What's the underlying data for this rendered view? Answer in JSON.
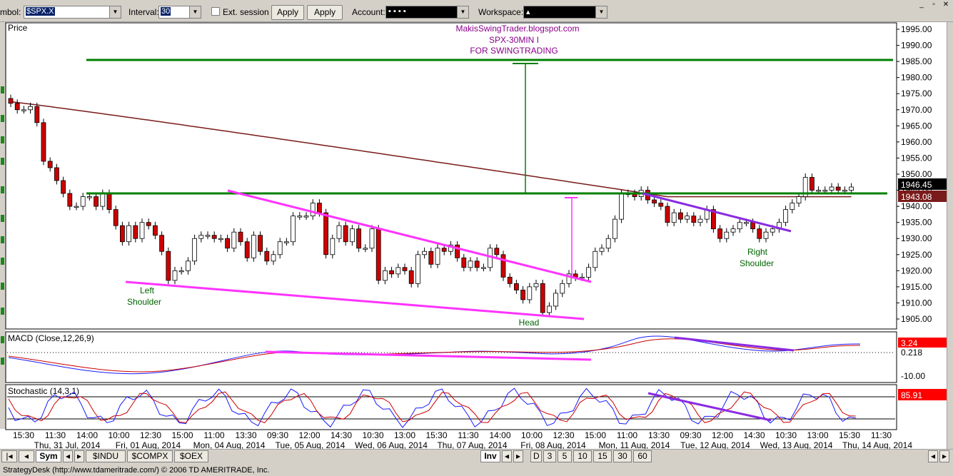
{
  "toolbar": {
    "symbol_label": "mbol:",
    "symbol_value": "$SPX.X",
    "interval_label": "Interval:",
    "interval_value": "30",
    "ext_session_label": "Ext. session",
    "apply_label": "Apply",
    "apply_all_label": "Apply All",
    "account_label": "Account:",
    "account_value": "▪  ▪  ▪  ▪",
    "workspace_label": "Workspace:",
    "workspace_value": "▴"
  },
  "annotations": {
    "site": "MakisSwingTrader.blogspot.com",
    "symbol_line": "SPX-30MIN  I",
    "purpose": "FOR SWINGTRADING",
    "left_shoulder": [
      "Left",
      "Shoulder"
    ],
    "head": "Head",
    "right_shoulder": [
      "Right",
      "Shoulder"
    ]
  },
  "chart_data": [
    {
      "type": "candlestick",
      "title": "Price",
      "y_ticks": [
        "1995.00",
        "1990.00",
        "1985.00",
        "1980.00",
        "1975.00",
        "1970.00",
        "1965.00",
        "1960.00",
        "1955.00",
        "1950.00",
        "1945.00",
        "1940.00",
        "1935.00",
        "1930.00",
        "1925.00",
        "1920.00",
        "1915.00",
        "1910.00",
        "1905.00"
      ],
      "ylim": [
        1901,
        1997
      ],
      "last_price": "1946.45",
      "ma_value": "1943.08",
      "closes": [
        1972,
        1970,
        1970,
        1971,
        1966,
        1954,
        1952,
        1948,
        1944,
        1940,
        1940,
        1943,
        1943,
        1940,
        1944,
        1939,
        1934,
        1929,
        1934,
        1930,
        1935,
        1934,
        1931,
        1926,
        1917,
        1920,
        1920,
        1923,
        1930,
        1931,
        1931,
        1930,
        1930,
        1927,
        1932,
        1929,
        1924,
        1931,
        1926,
        1923,
        1925,
        1929,
        1929,
        1937,
        1937,
        1937,
        1941,
        1938,
        1925,
        1930,
        1934,
        1929,
        1933,
        1927,
        1927,
        1933,
        1917,
        1920,
        1919,
        1921,
        1920,
        1916,
        1925,
        1926,
        1922,
        1927,
        1926,
        1928,
        1924,
        1921,
        1923,
        1921,
        1921,
        1927,
        1925,
        1918,
        1916,
        1914,
        1911,
        1915,
        1916,
        1907,
        1909,
        1913,
        1916,
        1919,
        1918,
        1918,
        1921,
        1926,
        1927,
        1930,
        1936,
        1944,
        1944,
        1943,
        1945,
        1942,
        1941,
        1940,
        1935,
        1938,
        1936,
        1937,
        1935,
        1936,
        1939,
        1933,
        1930,
        1932,
        1933,
        1935,
        1935,
        1933,
        1930,
        1932,
        1933,
        1935,
        1939,
        1941,
        1943,
        1949,
        1945,
        1945,
        1945,
        1946,
        1945,
        1945,
        1946
      ]
    },
    {
      "type": "line",
      "title": "MACD (Close,12,26,9)",
      "y_ticks": [
        "-10.00"
      ],
      "labels": [
        "3.24",
        "0.218"
      ]
    },
    {
      "type": "line",
      "title": "Stochastic (14,3,1)",
      "labels": [
        "85.91"
      ]
    }
  ],
  "x_axis": {
    "times": [
      "15:30",
      "11:30",
      "14:00",
      "10:00",
      "12:30",
      "15:00",
      "11:00",
      "13:30",
      "09:30",
      "12:00",
      "14:30",
      "10:30",
      "13:00",
      "15:30",
      "11:30",
      "14:00",
      "10:00",
      "12:30",
      "15:00",
      "11:00",
      "13:30",
      "09:30",
      "12:00",
      "14:30",
      "10:30",
      "13:00",
      "15:30",
      "11:30"
    ],
    "dates": [
      "Thu, 31 Jul, 2014",
      "Fri, 01 Aug, 2014",
      "Mon, 04 Aug, 2014",
      "Tue, 05 Aug, 2014",
      "Wed, 06 Aug, 2014",
      "Thu, 07 Aug, 2014",
      "Fri, 08 Aug, 2014",
      "Mon, 11 Aug, 2014",
      "Tue, 12 Aug, 2014",
      "Wed, 13 Aug, 2014",
      "Thu, 14 Aug, 2014"
    ]
  },
  "nav": {
    "sym": "Sym",
    "tabs": [
      "$INDU",
      "$COMPX",
      "$OEX"
    ],
    "inv": "Inv",
    "periods": [
      "D",
      "3",
      "5",
      "10",
      "15",
      "30",
      "60"
    ]
  },
  "status": "StrategyDesk (http://www.tdameritrade.com/) © 2006 TD AMERITRADE, Inc.",
  "colors": {
    "green_line": "#008000",
    "magenta_line": "#ff00ff",
    "purple_line": "#8a2be2",
    "ma_line": "#7a1b1b",
    "up_candle": "#ffffff",
    "down_candle": "#cc0000"
  }
}
